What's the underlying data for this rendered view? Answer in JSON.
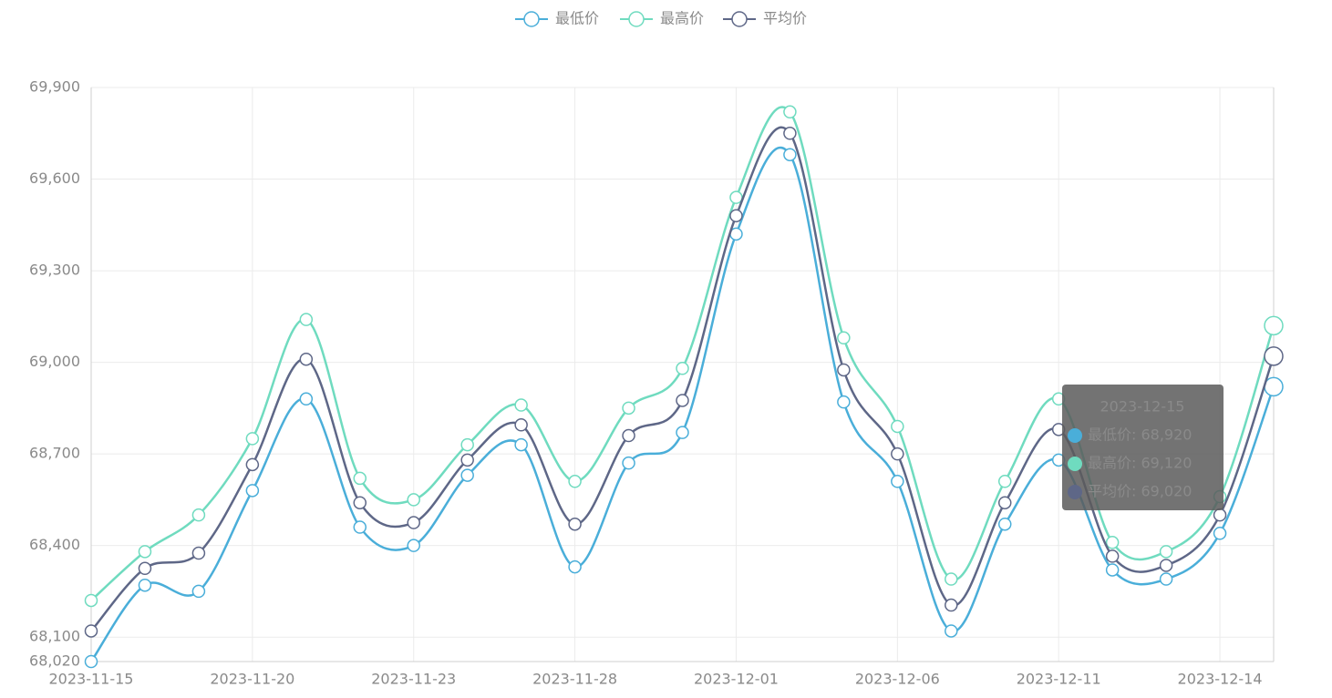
{
  "chart_data": {
    "type": "line",
    "categories": [
      "2023-11-15",
      null,
      null,
      "2023-11-20",
      null,
      null,
      "2023-11-23",
      null,
      null,
      "2023-11-28",
      null,
      null,
      "2023-12-01",
      null,
      null,
      "2023-12-06",
      null,
      null,
      "2023-12-11",
      null,
      null,
      "2023-12-14",
      null
    ],
    "series": [
      {
        "name": "最低价",
        "color": "#4aaed9",
        "values": [
          68020,
          68270,
          68250,
          68580,
          68880,
          68460,
          68400,
          68630,
          68730,
          68330,
          68670,
          68770,
          69420,
          69680,
          68870,
          68610,
          68120,
          68470,
          68680,
          68320,
          68290,
          68440,
          68920
        ]
      },
      {
        "name": "最高价",
        "color": "#6fdbbf",
        "values": [
          68220,
          68380,
          68500,
          68750,
          69140,
          68620,
          68550,
          68730,
          68860,
          68610,
          68850,
          68980,
          69540,
          69820,
          69080,
          68790,
          68290,
          68610,
          68880,
          68410,
          68380,
          68560,
          69120
        ]
      },
      {
        "name": "平均价",
        "color": "#5e6787",
        "values": [
          68120,
          68325,
          68375,
          68665,
          69010,
          68540,
          68475,
          68680,
          68795,
          68470,
          68760,
          68875,
          69480,
          69750,
          68975,
          68700,
          68205,
          68540,
          68780,
          68365,
          68335,
          68500,
          69020
        ]
      }
    ],
    "ylim": [
      68020,
      69900
    ],
    "yticks": [
      {
        "value": 68020,
        "label": "68,020"
      },
      {
        "value": 68100,
        "label": "68,100"
      },
      {
        "value": 68400,
        "label": "68,400"
      },
      {
        "value": 68700,
        "label": "68,700"
      },
      {
        "value": 69000,
        "label": "69,000"
      },
      {
        "value": 69300,
        "label": "69,300"
      },
      {
        "value": 69600,
        "label": "69,600"
      },
      {
        "value": 69900,
        "label": "69,900"
      }
    ],
    "grid": true,
    "legend": "top",
    "tooltip": {
      "title": "2023-12-15",
      "rows": [
        "最低价: 68,920",
        "最高价: 69,120",
        "平均价: 69,020"
      ]
    }
  }
}
